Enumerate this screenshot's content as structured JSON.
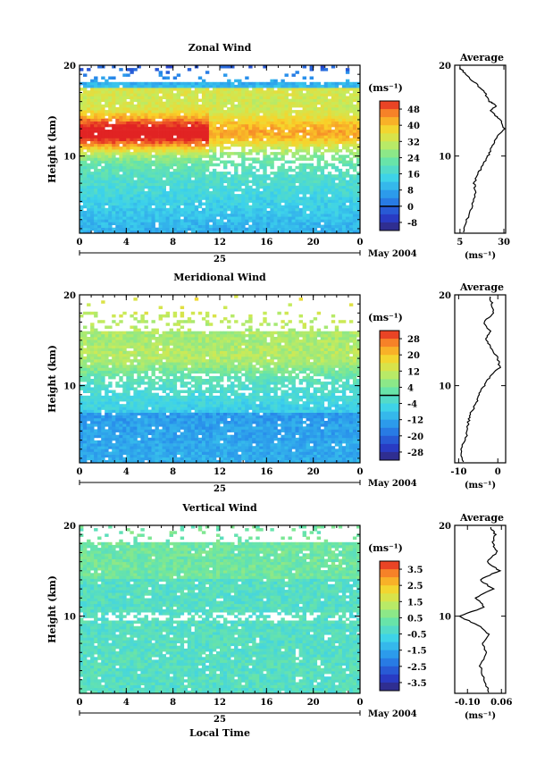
{
  "chart_data": [
    {
      "type": "heatmap",
      "title": "Zonal Wind",
      "xlabel": "",
      "ylabel": "Height (km)",
      "x_ticks": [
        "0",
        "4",
        "8",
        "12",
        "16",
        "20",
        "0"
      ],
      "y_ticks": [
        "10",
        "20"
      ],
      "xlim": [
        0,
        24
      ],
      "ylim": [
        1.5,
        20
      ],
      "day_label": "25",
      "date_label": "May 2004",
      "colorbar": {
        "unit_label": "(ms⁻¹)",
        "ticks": [
          "48",
          "40",
          "32",
          "24",
          "16",
          "8",
          "0",
          "-8"
        ],
        "range": [
          -12,
          52
        ],
        "marker_value": 0
      },
      "average": {
        "title": "Average",
        "xlabel": "(ms⁻¹)",
        "x_ticks": [
          "5",
          "30"
        ],
        "xlim": [
          2,
          31
        ],
        "y_ticks": [
          "10",
          "20"
        ],
        "profile": [
          {
            "h": 1.6,
            "v": 7
          },
          {
            "h": 3,
            "v": 9
          },
          {
            "h": 4.5,
            "v": 12
          },
          {
            "h": 6,
            "v": 14
          },
          {
            "h": 7,
            "v": 13
          },
          {
            "h": 8,
            "v": 15
          },
          {
            "h": 9,
            "v": 18
          },
          {
            "h": 10,
            "v": 21
          },
          {
            "h": 11,
            "v": 23
          },
          {
            "h": 12,
            "v": 26
          },
          {
            "h": 13,
            "v": 30
          },
          {
            "h": 14,
            "v": 28
          },
          {
            "h": 14.5,
            "v": 25
          },
          {
            "h": 15,
            "v": 22
          },
          {
            "h": 15.5,
            "v": 26
          },
          {
            "h": 16,
            "v": 22
          },
          {
            "h": 17,
            "v": 19
          },
          {
            "h": 18,
            "v": 14
          },
          {
            "h": 19,
            "v": 8
          },
          {
            "h": 19.8,
            "v": 5
          }
        ]
      }
    },
    {
      "type": "heatmap",
      "title": "Meridional Wind",
      "xlabel": "",
      "ylabel": "Height (km)",
      "x_ticks": [
        "0",
        "4",
        "8",
        "12",
        "16",
        "20",
        "0"
      ],
      "y_ticks": [
        "10",
        "20"
      ],
      "xlim": [
        0,
        24
      ],
      "ylim": [
        1.5,
        20
      ],
      "day_label": "25",
      "date_label": "May 2004",
      "colorbar": {
        "unit_label": "(ms⁻¹)",
        "ticks": [
          "28",
          "20",
          "12",
          "4",
          "-4",
          "-12",
          "-20",
          "-28"
        ],
        "range": [
          -32,
          32
        ],
        "marker_value": 0
      },
      "average": {
        "title": "Average",
        "xlabel": "(ms⁻¹)",
        "x_ticks": [
          "-10",
          "0"
        ],
        "xlim": [
          -11,
          2
        ],
        "y_ticks": [
          "10",
          "20"
        ],
        "profile": [
          {
            "h": 1.6,
            "v": -9
          },
          {
            "h": 3,
            "v": -9.5
          },
          {
            "h": 4.5,
            "v": -8
          },
          {
            "h": 6,
            "v": -7.5
          },
          {
            "h": 7,
            "v": -7
          },
          {
            "h": 8,
            "v": -5.5
          },
          {
            "h": 9,
            "v": -5
          },
          {
            "h": 10,
            "v": -3.5
          },
          {
            "h": 11,
            "v": -2
          },
          {
            "h": 12,
            "v": 0.5
          },
          {
            "h": 13,
            "v": 0
          },
          {
            "h": 14,
            "v": -1.5
          },
          {
            "h": 15,
            "v": -3
          },
          {
            "h": 16,
            "v": -2
          },
          {
            "h": 17,
            "v": -3.5
          },
          {
            "h": 18,
            "v": -1
          },
          {
            "h": 19,
            "v": -1.5
          },
          {
            "h": 19.8,
            "v": -2
          }
        ]
      }
    },
    {
      "type": "heatmap",
      "title": "Vertical Wind",
      "xlabel": "Local Time",
      "ylabel": "Height (km)",
      "x_ticks": [
        "0",
        "4",
        "8",
        "12",
        "16",
        "20",
        "0"
      ],
      "y_ticks": [
        "10",
        "20"
      ],
      "xlim": [
        0,
        24
      ],
      "ylim": [
        1.5,
        20
      ],
      "day_label": "25",
      "date_label": "May 2004",
      "colorbar": {
        "unit_label": "(ms⁻¹)",
        "ticks": [
          "3.5",
          "2.5",
          "1.5",
          "0.5",
          "-0.5",
          "-1.5",
          "-2.5",
          "-3.5"
        ],
        "range": [
          -4,
          4
        ],
        "marker_value": null
      },
      "average": {
        "title": "Average",
        "xlabel": "(ms⁻¹)",
        "x_ticks": [
          "-0.10",
          "0.06"
        ],
        "xlim": [
          -0.16,
          0.08
        ],
        "y_ticks": [
          "10",
          "20"
        ],
        "profile": [
          {
            "h": 1.6,
            "v": 0.0
          },
          {
            "h": 3,
            "v": -0.02
          },
          {
            "h": 4.5,
            "v": -0.04
          },
          {
            "h": 6,
            "v": -0.01
          },
          {
            "h": 7,
            "v": -0.03
          },
          {
            "h": 8,
            "v": 0.0
          },
          {
            "h": 9,
            "v": -0.05
          },
          {
            "h": 10,
            "v": -0.14
          },
          {
            "h": 11,
            "v": -0.02
          },
          {
            "h": 12,
            "v": -0.06
          },
          {
            "h": 13,
            "v": 0.02
          },
          {
            "h": 14,
            "v": -0.04
          },
          {
            "h": 15,
            "v": 0.05
          },
          {
            "h": 16,
            "v": -0.01
          },
          {
            "h": 17,
            "v": 0.04
          },
          {
            "h": 18,
            "v": 0.02
          },
          {
            "h": 19,
            "v": 0.03
          },
          {
            "h": 19.8,
            "v": 0.01
          }
        ]
      }
    }
  ]
}
